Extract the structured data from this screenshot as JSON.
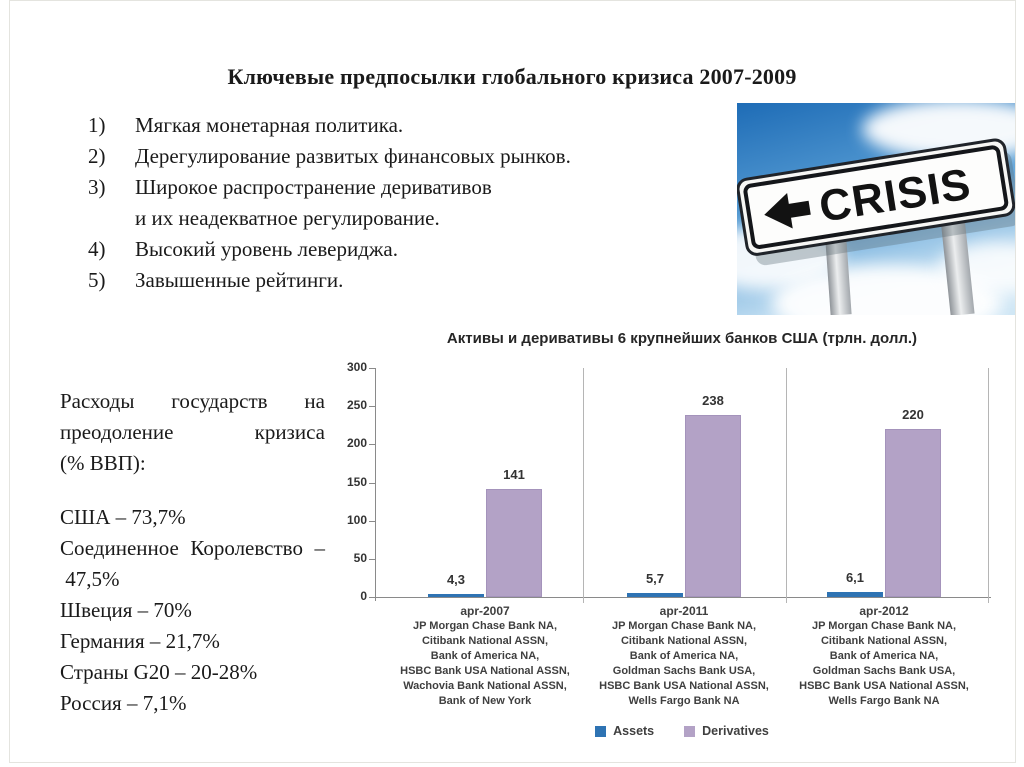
{
  "slide": {
    "title": "Ключевые предпосылки глобального кризиса 2007-2009",
    "list": [
      {
        "num": "1)",
        "text": "Мягкая монетарная политика."
      },
      {
        "num": "2)",
        "text": "Дерегулирование развитых финансовых рынков."
      },
      {
        "num": "3)",
        "text": "Широкое распространение деривативов\n и их неадекватное регулирование."
      },
      {
        "num": "4)",
        "text": "Высокий уровень левериджа."
      },
      {
        "num": "5)",
        "text": "Завышенные рейтинги."
      }
    ],
    "costs_block": {
      "heading": "Расходы государств на преодоление кризиса (% ВВП):",
      "items": [
        "США – 73,7%",
        "Соединенное Королевство – 47,5%",
        "Швеция – 70%",
        "Германия – 21,7%",
        "Страны G20 – 20-28%",
        "Россия – 7,1%"
      ]
    },
    "crisis_image": {
      "sign_text": "CRISIS"
    }
  },
  "chart_data": {
    "type": "bar",
    "title": "Активы и деривативы 6 крупнейших банков США (трлн. долл.)",
    "categories": [
      "apr-2007",
      "apr-2011",
      "apr-2012"
    ],
    "category_banks": [
      [
        "JP Morgan Chase Bank NA,",
        "Citibank National ASSN,",
        "Bank of America NA,",
        "HSBC Bank USA National ASSN,",
        "Wachovia Bank National ASSN,",
        "Bank of New York"
      ],
      [
        "JP Morgan Chase Bank NA,",
        "Citibank National ASSN,",
        "Bank of America NA,",
        "Goldman Sachs Bank USA,",
        "HSBC Bank USA National ASSN,",
        "Wells Fargo Bank NA"
      ],
      [
        "JP Morgan Chase Bank NA,",
        "Citibank National ASSN,",
        "Bank of America NA,",
        "Goldman Sachs Bank USA,",
        "HSBC Bank USA National ASSN,",
        "Wells Fargo Bank NA"
      ]
    ],
    "series": [
      {
        "name": "Assets",
        "values": [
          4.3,
          5.7,
          6.1
        ],
        "labels": [
          "4,3",
          "5,7",
          "6,1"
        ],
        "color": "#2e73b3"
      },
      {
        "name": "Derivatives",
        "values": [
          141,
          238,
          220
        ],
        "labels": [
          "141",
          "238",
          "220"
        ],
        "color": "#b3a2c6"
      }
    ],
    "ylim": [
      0,
      300
    ],
    "yticks": [
      0,
      50,
      100,
      150,
      200,
      250,
      300
    ],
    "grid": false,
    "legend_position": "bottom"
  }
}
